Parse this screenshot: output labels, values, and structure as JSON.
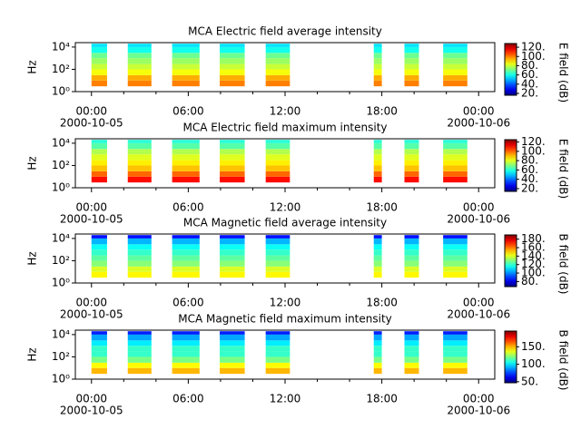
{
  "chart_data": [
    {
      "type": "spectrogram",
      "title": "MCA  Electric field average intensity",
      "ylabel": "Hz",
      "colorbar_label": "E field (dB)",
      "xlim": [
        "2000-10-04 23:00",
        "2000-10-06 01:00"
      ],
      "xticks": [
        {
          "value": "2000-10-05 00:00",
          "label": "00:00",
          "date": "2000-10-05"
        },
        {
          "value": "2000-10-05 06:00",
          "label": "06:00"
        },
        {
          "value": "2000-10-05 12:00",
          "label": "12:00"
        },
        {
          "value": "2000-10-05 18:00",
          "label": "18:00"
        },
        {
          "value": "2000-10-06 00:00",
          "label": "00:00",
          "date": "2000-10-06"
        }
      ],
      "xminor_ticks": [
        "2000-10-05 02:00",
        "2000-10-05 04:00",
        "2000-10-05 08:00",
        "2000-10-05 10:00",
        "2000-10-05 14:00",
        "2000-10-05 16:00",
        "2000-10-05 20:00",
        "2000-10-05 22:00"
      ],
      "ylog": true,
      "ylim": [
        1,
        25000
      ],
      "yticks": [
        {
          "value": 1,
          "label": "10⁰"
        },
        {
          "value": 100,
          "label": "10²"
        },
        {
          "value": 10000,
          "label": "10⁴"
        }
      ],
      "segments": [
        {
          "start": "2000-10-05 00:00",
          "end": "2000-10-05 00:58"
        },
        {
          "start": "2000-10-05 02:15",
          "end": "2000-10-05 03:43"
        },
        {
          "start": "2000-10-05 05:00",
          "end": "2000-10-05 06:42"
        },
        {
          "start": "2000-10-05 07:57",
          "end": "2000-10-05 09:30"
        },
        {
          "start": "2000-10-05 10:48",
          "end": "2000-10-05 12:18"
        },
        {
          "start": "2000-10-05 17:30",
          "end": "2000-10-05 18:00"
        },
        {
          "start": "2000-10-05 19:24",
          "end": "2000-10-05 20:18"
        },
        {
          "start": "2000-10-05 21:48",
          "end": "2000-10-05 23:18"
        }
      ],
      "freq_bins": [
        3,
        10,
        30,
        100,
        300,
        1000,
        3000,
        10000,
        20000
      ],
      "values": [
        100,
        95,
        85,
        80,
        75,
        70,
        60,
        55
      ],
      "clim": [
        16,
        128
      ],
      "cticks": [
        {
          "value": 20,
          "label": "20."
        },
        {
          "value": 40,
          "label": "40."
        },
        {
          "value": 60,
          "label": "60."
        },
        {
          "value": 80,
          "label": "80."
        },
        {
          "value": 100,
          "label": "100."
        },
        {
          "value": 120,
          "label": "120."
        }
      ]
    },
    {
      "type": "spectrogram",
      "title": "MCA  Electric field maximum intensity",
      "ylabel": "Hz",
      "colorbar_label": "E field (dB)",
      "xlim": [
        "2000-10-04 23:00",
        "2000-10-06 01:00"
      ],
      "xticks": [
        {
          "value": "2000-10-05 00:00",
          "label": "00:00",
          "date": "2000-10-05"
        },
        {
          "value": "2000-10-05 06:00",
          "label": "06:00"
        },
        {
          "value": "2000-10-05 12:00",
          "label": "12:00"
        },
        {
          "value": "2000-10-05 18:00",
          "label": "18:00"
        },
        {
          "value": "2000-10-06 00:00",
          "label": "00:00",
          "date": "2000-10-06"
        }
      ],
      "xminor_ticks": [
        "2000-10-05 02:00",
        "2000-10-05 04:00",
        "2000-10-05 08:00",
        "2000-10-05 10:00",
        "2000-10-05 14:00",
        "2000-10-05 16:00",
        "2000-10-05 20:00",
        "2000-10-05 22:00"
      ],
      "ylog": true,
      "ylim": [
        1,
        25000
      ],
      "yticks": [
        {
          "value": 1,
          "label": "10⁰"
        },
        {
          "value": 100,
          "label": "10²"
        },
        {
          "value": 10000,
          "label": "10⁴"
        }
      ],
      "segments": [
        {
          "start": "2000-10-05 00:00",
          "end": "2000-10-05 00:58"
        },
        {
          "start": "2000-10-05 02:15",
          "end": "2000-10-05 03:43"
        },
        {
          "start": "2000-10-05 05:00",
          "end": "2000-10-05 06:42"
        },
        {
          "start": "2000-10-05 07:57",
          "end": "2000-10-05 09:30"
        },
        {
          "start": "2000-10-05 10:48",
          "end": "2000-10-05 12:18"
        },
        {
          "start": "2000-10-05 17:30",
          "end": "2000-10-05 18:00"
        },
        {
          "start": "2000-10-05 19:24",
          "end": "2000-10-05 20:18"
        },
        {
          "start": "2000-10-05 21:48",
          "end": "2000-10-05 23:18"
        }
      ],
      "freq_bins": [
        3,
        10,
        30,
        100,
        300,
        1000,
        3000,
        10000,
        20000
      ],
      "values": [
        110,
        100,
        90,
        85,
        80,
        75,
        65,
        60
      ],
      "clim": [
        14,
        125
      ],
      "cticks": [
        {
          "value": 20,
          "label": "20."
        },
        {
          "value": 40,
          "label": "40."
        },
        {
          "value": 60,
          "label": "60."
        },
        {
          "value": 80,
          "label": "80."
        },
        {
          "value": 100,
          "label": "100."
        },
        {
          "value": 120,
          "label": "120."
        }
      ]
    },
    {
      "type": "spectrogram",
      "title": "MCA  Magnetic field average intensity",
      "ylabel": "Hz",
      "colorbar_label": "B field (dB)",
      "xlim": [
        "2000-10-04 23:00",
        "2000-10-06 01:00"
      ],
      "xticks": [
        {
          "value": "2000-10-05 00:00",
          "label": "00:00",
          "date": "2000-10-05"
        },
        {
          "value": "2000-10-05 06:00",
          "label": "06:00"
        },
        {
          "value": "2000-10-05 12:00",
          "label": "12:00"
        },
        {
          "value": "2000-10-05 18:00",
          "label": "18:00"
        },
        {
          "value": "2000-10-06 00:00",
          "label": "00:00",
          "date": "2000-10-06"
        }
      ],
      "xminor_ticks": [
        "2000-10-05 02:00",
        "2000-10-05 04:00",
        "2000-10-05 08:00",
        "2000-10-05 10:00",
        "2000-10-05 14:00",
        "2000-10-05 16:00",
        "2000-10-05 20:00",
        "2000-10-05 22:00"
      ],
      "ylog": true,
      "ylim": [
        1,
        25000
      ],
      "yticks": [
        {
          "value": 1,
          "label": "10⁰"
        },
        {
          "value": 100,
          "label": "10²"
        },
        {
          "value": 10000,
          "label": "10⁴"
        }
      ],
      "segments": [
        {
          "start": "2000-10-05 00:00",
          "end": "2000-10-05 00:58"
        },
        {
          "start": "2000-10-05 02:15",
          "end": "2000-10-05 03:43"
        },
        {
          "start": "2000-10-05 05:00",
          "end": "2000-10-05 06:42"
        },
        {
          "start": "2000-10-05 07:57",
          "end": "2000-10-05 09:30"
        },
        {
          "start": "2000-10-05 10:48",
          "end": "2000-10-05 12:18"
        },
        {
          "start": "2000-10-05 17:30",
          "end": "2000-10-05 18:00"
        },
        {
          "start": "2000-10-05 19:24",
          "end": "2000-10-05 20:18"
        },
        {
          "start": "2000-10-05 21:48",
          "end": "2000-10-05 23:18"
        }
      ],
      "freq_bins": [
        3,
        10,
        30,
        100,
        300,
        1000,
        3000,
        10000,
        20000
      ],
      "values": [
        145,
        140,
        130,
        125,
        120,
        115,
        105,
        85
      ],
      "clim": [
        68,
        190
      ],
      "cticks": [
        {
          "value": 80,
          "label": "80."
        },
        {
          "value": 100,
          "label": "100."
        },
        {
          "value": 120,
          "label": "120."
        },
        {
          "value": 140,
          "label": "140."
        },
        {
          "value": 160,
          "label": "160."
        },
        {
          "value": 180,
          "label": "180."
        }
      ]
    },
    {
      "type": "spectrogram",
      "title": "MCA  Magnetic field maximum intensity",
      "ylabel": "Hz",
      "colorbar_label": "B field (dB)",
      "xlim": [
        "2000-10-04 23:00",
        "2000-10-06 01:00"
      ],
      "xticks": [
        {
          "value": "2000-10-05 00:00",
          "label": "00:00",
          "date": "2000-10-05"
        },
        {
          "value": "2000-10-05 06:00",
          "label": "06:00"
        },
        {
          "value": "2000-10-05 12:00",
          "label": "12:00"
        },
        {
          "value": "2000-10-05 18:00",
          "label": "18:00"
        },
        {
          "value": "2000-10-06 00:00",
          "label": "00:00",
          "date": "2000-10-06"
        }
      ],
      "xminor_ticks": [
        "2000-10-05 02:00",
        "2000-10-05 04:00",
        "2000-10-05 08:00",
        "2000-10-05 10:00",
        "2000-10-05 14:00",
        "2000-10-05 16:00",
        "2000-10-05 20:00",
        "2000-10-05 22:00"
      ],
      "ylog": true,
      "ylim": [
        1,
        25000
      ],
      "yticks": [
        {
          "value": 1,
          "label": "10⁰"
        },
        {
          "value": 100,
          "label": "10²"
        },
        {
          "value": 10000,
          "label": "10⁴"
        }
      ],
      "segments": [
        {
          "start": "2000-10-05 00:00",
          "end": "2000-10-05 00:58"
        },
        {
          "start": "2000-10-05 02:15",
          "end": "2000-10-05 03:43"
        },
        {
          "start": "2000-10-05 05:00",
          "end": "2000-10-05 06:42"
        },
        {
          "start": "2000-10-05 07:57",
          "end": "2000-10-05 09:30"
        },
        {
          "start": "2000-10-05 10:48",
          "end": "2000-10-05 12:18"
        },
        {
          "start": "2000-10-05 17:30",
          "end": "2000-10-05 18:00"
        },
        {
          "start": "2000-10-05 19:24",
          "end": "2000-10-05 20:18"
        },
        {
          "start": "2000-10-05 21:48",
          "end": "2000-10-05 23:18"
        }
      ],
      "freq_bins": [
        3,
        10,
        30,
        100,
        300,
        1000,
        3000,
        10000,
        20000
      ],
      "values": [
        150,
        140,
        120,
        110,
        110,
        100,
        90,
        70
      ],
      "clim": [
        47,
        195
      ],
      "cticks": [
        {
          "value": 50,
          "label": "50."
        },
        {
          "value": 100,
          "label": "100."
        },
        {
          "value": 150,
          "label": "150."
        }
      ]
    }
  ]
}
